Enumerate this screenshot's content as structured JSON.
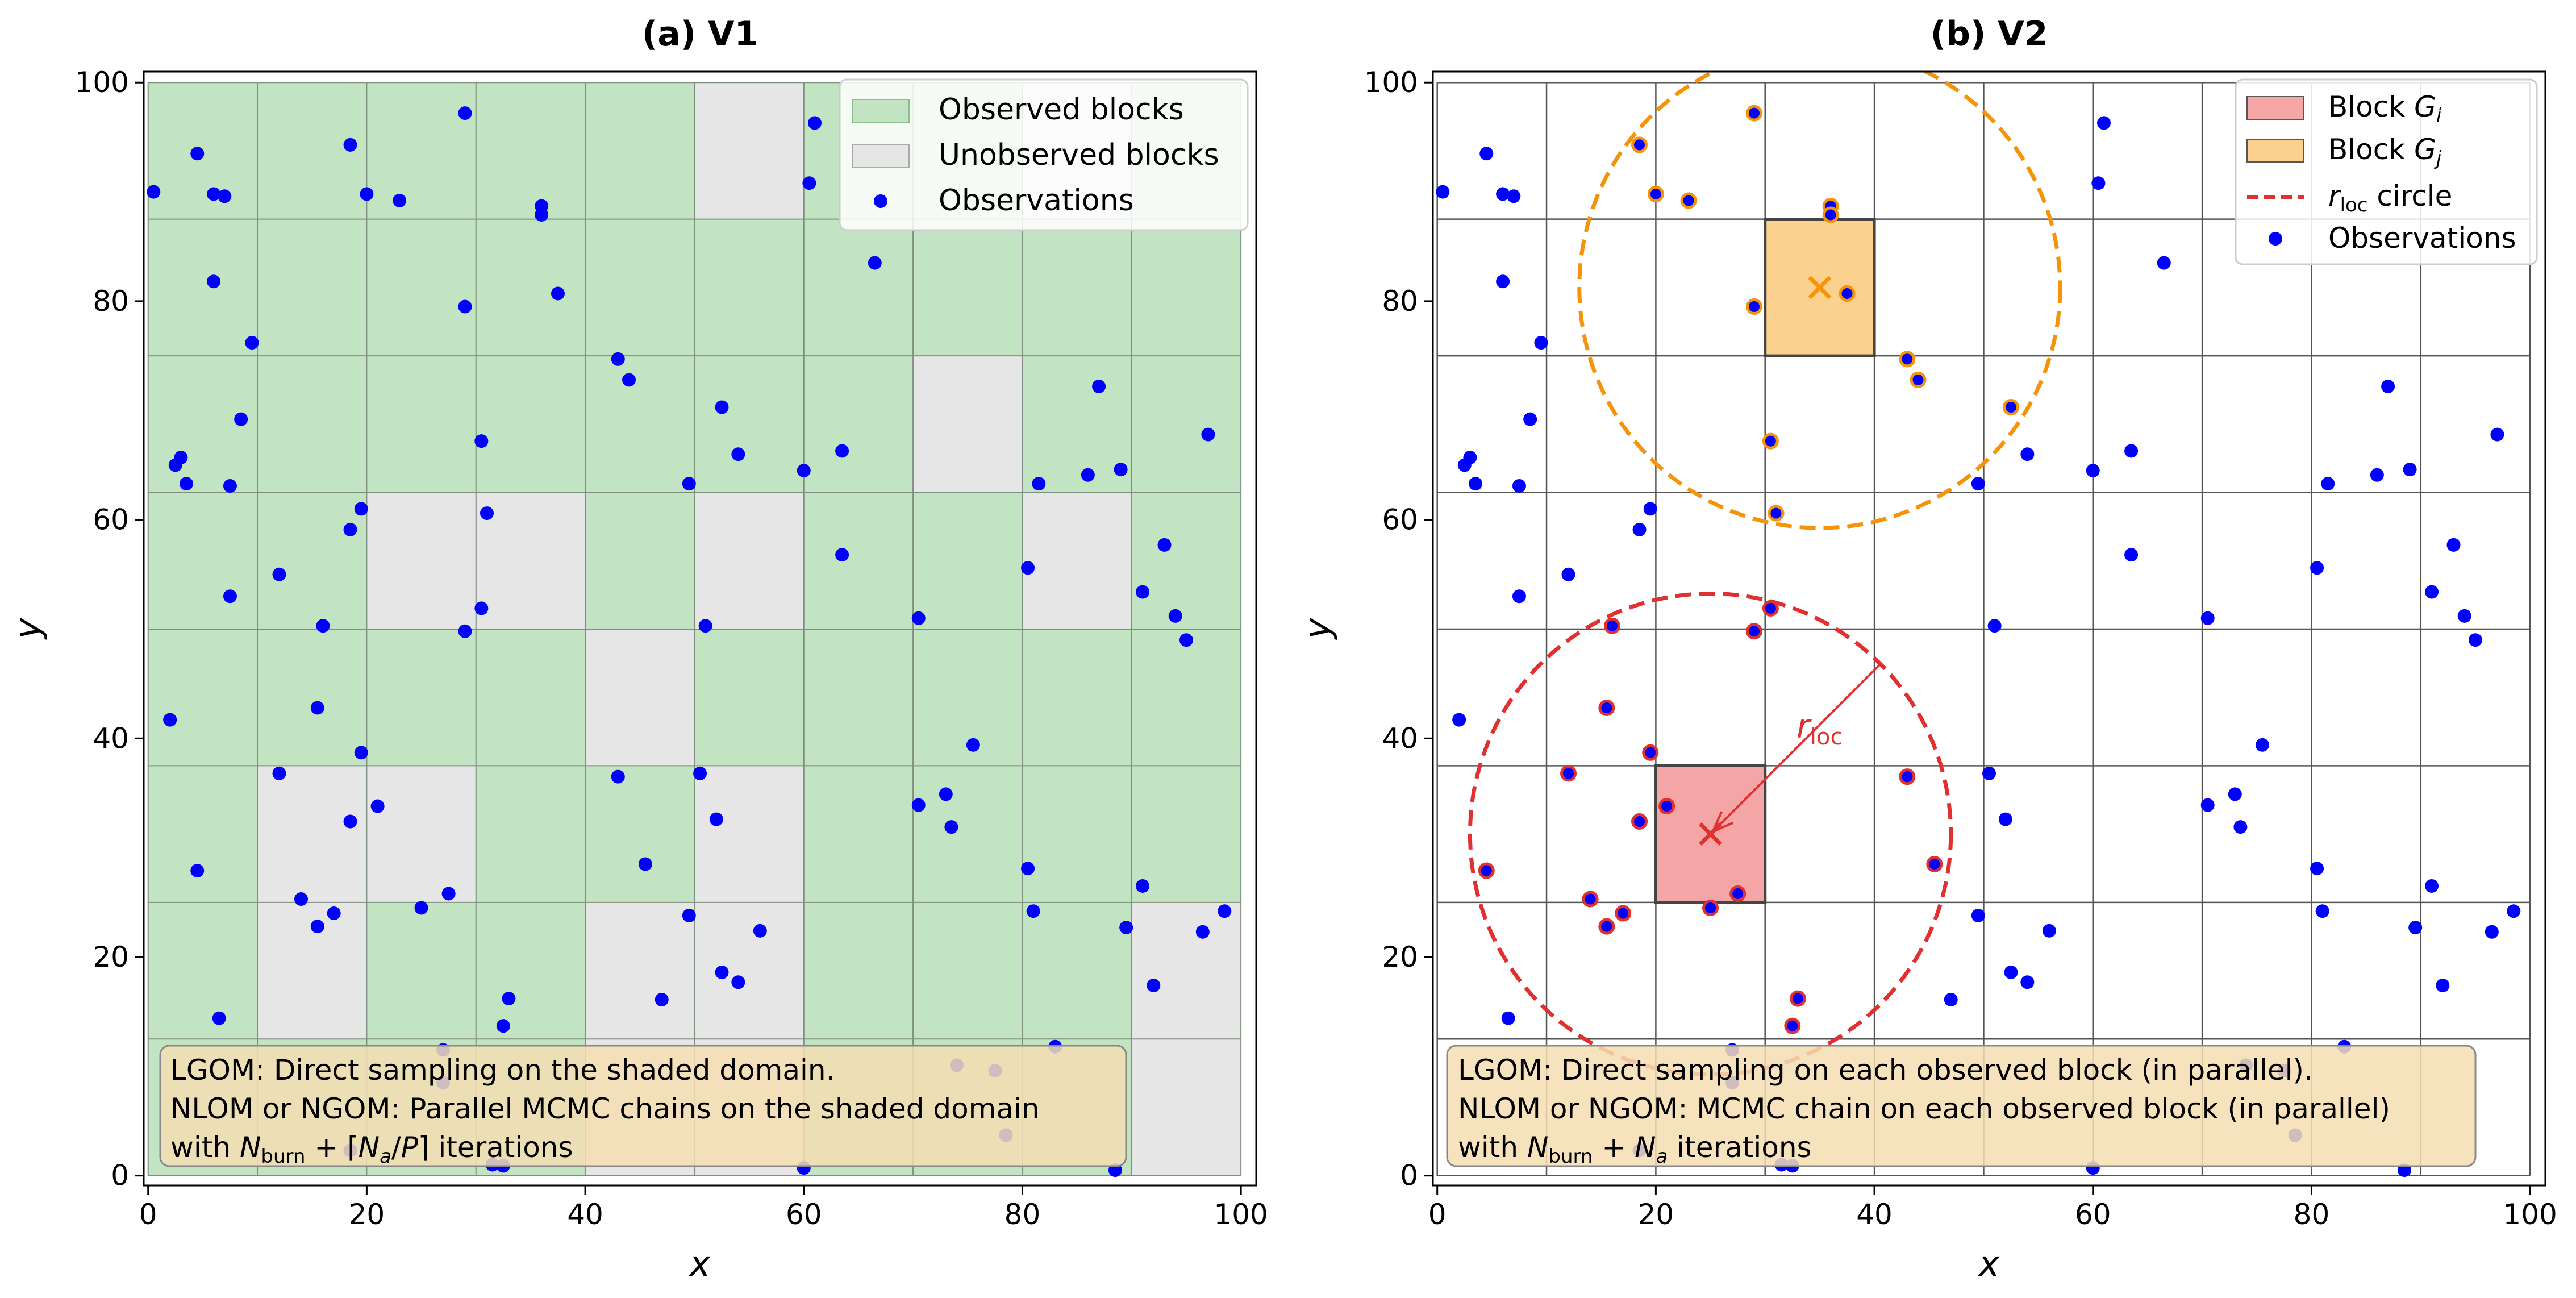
{
  "chart_data": [
    {
      "type": "scatter",
      "title": "(a) V1",
      "xlabel": "x",
      "ylabel": "y",
      "xlim": [
        0,
        100
      ],
      "ylim": [
        0,
        100
      ],
      "xticks": [
        "0",
        "20",
        "40",
        "60",
        "80",
        "100"
      ],
      "yticks": [
        "0",
        "20",
        "40",
        "60",
        "80",
        "100"
      ],
      "grid": {
        "x_divisions": 10,
        "y_divisions": 8
      },
      "observed_blocks": [
        [
          1,
          1,
          1,
          1,
          1,
          0,
          1,
          1,
          0,
          1
        ],
        [
          1,
          1,
          1,
          1,
          1,
          1,
          1,
          1,
          1,
          1
        ],
        [
          1,
          1,
          1,
          1,
          1,
          1,
          1,
          0,
          1,
          1
        ],
        [
          1,
          1,
          0,
          0,
          1,
          0,
          1,
          1,
          0,
          1
        ],
        [
          1,
          1,
          1,
          1,
          0,
          1,
          1,
          1,
          1,
          1
        ],
        [
          1,
          0,
          0,
          1,
          1,
          0,
          1,
          1,
          1,
          1
        ],
        [
          1,
          0,
          1,
          1,
          0,
          0,
          1,
          1,
          1,
          0
        ],
        [
          1,
          1,
          1,
          1,
          0,
          0,
          1,
          1,
          1,
          0
        ]
      ],
      "colors": {
        "observed": "#c2e4c2",
        "unobserved": "#e6e6e6",
        "points": "#0000ff"
      },
      "legend": {
        "position": "top-right",
        "entries": [
          "Observed blocks",
          "Unobserved blocks",
          "Observations"
        ]
      },
      "annotation": {
        "lines": [
          "LGOM: Direct sampling on the shaded domain.",
          "NLOM or NGOM: Parallel MCMC chains on the shaded domain",
          "with N_burn + ⌈N_a/P⌉ iterations"
        ]
      }
    },
    {
      "type": "scatter",
      "title": "(b) V2",
      "xlabel": "x",
      "ylabel": "y",
      "xlim": [
        0,
        100
      ],
      "ylim": [
        0,
        100
      ],
      "xticks": [
        "0",
        "20",
        "40",
        "60",
        "80",
        "100"
      ],
      "yticks": [
        "0",
        "20",
        "40",
        "60",
        "80",
        "100"
      ],
      "grid": {
        "x_divisions": 10,
        "y_divisions": 8
      },
      "block_i": {
        "x": [
          20,
          30
        ],
        "y": [
          25,
          37.5
        ],
        "center": [
          25,
          31.25
        ],
        "color": "#f4a6a6"
      },
      "block_j": {
        "x": [
          30,
          40
        ],
        "y": [
          75,
          87.5
        ],
        "center": [
          35,
          81.25
        ],
        "color": "#fcd08e"
      },
      "circle_i": {
        "center": [
          25,
          31.25
        ],
        "radius": 22,
        "color": "#e03030"
      },
      "circle_j": {
        "center": [
          35,
          81.25
        ],
        "radius": 22,
        "color": "#f5930a"
      },
      "r_loc_label": "r_loc",
      "colors": {
        "points": "#0000ff"
      },
      "legend": {
        "position": "top-right",
        "entries": [
          "Block G_i",
          "Block G_j",
          "r_loc circle",
          "Observations"
        ]
      },
      "annotation": {
        "lines": [
          "LGOM: Direct sampling on each observed block (in parallel).",
          "NLOM or NGOM: MCMC chain on each observed block (in parallel)",
          "with N_burn + N_a iterations"
        ]
      }
    }
  ],
  "observations": [
    [
      0.5,
      90
    ],
    [
      4.5,
      93.5
    ],
    [
      6,
      89.8
    ],
    [
      7,
      89.6
    ],
    [
      6,
      81.8
    ],
    [
      9.5,
      76.2
    ],
    [
      2.5,
      65
    ],
    [
      3,
      65.7
    ],
    [
      3.5,
      63.3
    ],
    [
      8.5,
      69.2
    ],
    [
      7.5,
      63.1
    ],
    [
      7.5,
      53
    ],
    [
      12,
      55
    ],
    [
      2,
      41.7
    ],
    [
      16,
      50.3
    ],
    [
      15.5,
      42.8
    ],
    [
      12,
      36.8
    ],
    [
      18.5,
      59.1
    ],
    [
      19.5,
      61
    ],
    [
      18.5,
      94.3
    ],
    [
      20,
      89.8
    ],
    [
      23,
      89.2
    ],
    [
      29,
      97.2
    ],
    [
      29,
      79.5
    ],
    [
      30.5,
      67.2
    ],
    [
      31,
      60.6
    ],
    [
      36,
      88.7
    ],
    [
      36,
      87.9
    ],
    [
      37.5,
      80.7
    ],
    [
      43,
      74.7
    ],
    [
      44,
      72.8
    ],
    [
      52.5,
      70.3
    ],
    [
      54,
      66
    ],
    [
      60,
      64.5
    ],
    [
      61,
      96.3
    ],
    [
      60.5,
      90.8
    ],
    [
      66.5,
      83.5
    ],
    [
      63.5,
      66.3
    ],
    [
      63.5,
      56.8
    ],
    [
      70.5,
      51
    ],
    [
      75.5,
      39.4
    ],
    [
      80.5,
      55.6
    ],
    [
      81.5,
      63.3
    ],
    [
      86,
      64.1
    ],
    [
      87,
      72.2
    ],
    [
      89,
      64.6
    ],
    [
      93,
      57.7
    ],
    [
      91,
      53.4
    ],
    [
      94,
      51.2
    ],
    [
      95,
      49
    ],
    [
      97,
      67.8
    ],
    [
      96.5,
      22.3
    ],
    [
      98.5,
      24.2
    ],
    [
      92,
      17.4
    ],
    [
      89.5,
      22.7
    ],
    [
      91,
      26.5
    ],
    [
      88.5,
      0.5
    ],
    [
      83,
      11.8
    ],
    [
      78.5,
      3.7
    ],
    [
      77.5,
      9.6
    ],
    [
      74,
      10.1
    ],
    [
      81,
      24.2
    ],
    [
      80.5,
      28.1
    ],
    [
      73,
      34.9
    ],
    [
      73.5,
      31.9
    ],
    [
      70.5,
      33.9
    ],
    [
      60,
      0.7
    ],
    [
      56,
      22.4
    ],
    [
      54,
      17.7
    ],
    [
      52.5,
      18.6
    ],
    [
      49.5,
      23.8
    ],
    [
      47,
      16.1
    ],
    [
      45.5,
      28.5
    ],
    [
      50.5,
      36.8
    ],
    [
      52,
      32.6
    ],
    [
      51,
      50.3
    ],
    [
      49.5,
      63.3
    ],
    [
      43,
      36.5
    ],
    [
      33,
      16.2
    ],
    [
      32.5,
      13.7
    ],
    [
      32.5,
      0.9
    ],
    [
      27.5,
      25.8
    ],
    [
      27,
      11.5
    ],
    [
      25,
      24.5
    ],
    [
      21,
      33.8
    ],
    [
      18.5,
      32.4
    ],
    [
      19.5,
      38.7
    ],
    [
      17,
      24
    ],
    [
      15.5,
      22.8
    ],
    [
      14,
      25.3
    ],
    [
      30.5,
      51.9
    ],
    [
      29,
      49.8
    ],
    [
      6.5,
      14.4
    ],
    [
      4.5,
      27.9
    ],
    [
      18.5,
      2.3
    ],
    [
      31.5,
      1
    ],
    [
      27,
      8.5
    ]
  ],
  "highlighted_j": [
    [
      36,
      88.7
    ],
    [
      36,
      87.9
    ],
    [
      29,
      79.5
    ],
    [
      37.5,
      80.7
    ],
    [
      43,
      74.7
    ],
    [
      44,
      72.8
    ],
    [
      30.5,
      67.2
    ],
    [
      31,
      60.6
    ],
    [
      52.5,
      70.3
    ],
    [
      23,
      89.2
    ],
    [
      20,
      89.8
    ],
    [
      29,
      97.2
    ],
    [
      18.5,
      94.3
    ]
  ],
  "highlighted_i": [
    [
      16,
      50.3
    ],
    [
      15.5,
      42.8
    ],
    [
      12,
      36.8
    ],
    [
      19.5,
      38.7
    ],
    [
      18.5,
      32.4
    ],
    [
      21,
      33.8
    ],
    [
      17,
      24
    ],
    [
      15.5,
      22.8
    ],
    [
      14,
      25.3
    ],
    [
      25,
      24.5
    ],
    [
      27.5,
      25.8
    ],
    [
      29,
      49.8
    ],
    [
      30.5,
      51.9
    ],
    [
      43,
      36.5
    ],
    [
      45.5,
      28.5
    ],
    [
      33,
      16.2
    ],
    [
      32.5,
      13.7
    ],
    [
      4.5,
      27.9
    ]
  ]
}
